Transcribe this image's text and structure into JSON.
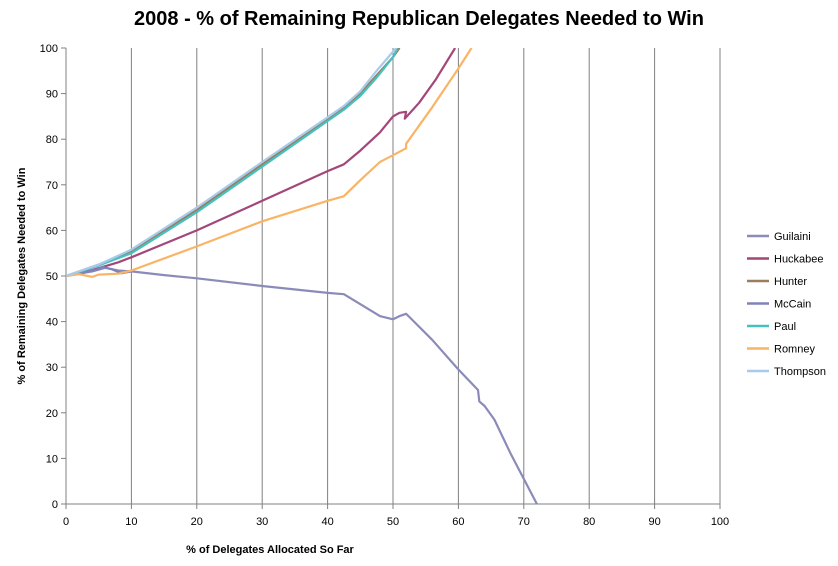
{
  "chart_data": {
    "type": "line",
    "title": "2008 - % of Remaining Republican Delegates Needed to Win",
    "xlabel": "% of Delegates Allocated So Far",
    "ylabel": "% of Remaining Delegates Needed to Win",
    "xlim": [
      0,
      100
    ],
    "ylim": [
      0,
      100
    ],
    "xticks": [
      0,
      10,
      20,
      30,
      40,
      50,
      60,
      70,
      80,
      90,
      100
    ],
    "yticks": [
      0,
      10,
      20,
      30,
      40,
      50,
      60,
      70,
      80,
      90,
      100
    ],
    "grid": "vertical",
    "legend": "right",
    "series": [
      {
        "name": "Guilaini",
        "color": "#8B8BB9",
        "points": [
          [
            0,
            50
          ],
          [
            2,
            50.5
          ],
          [
            4,
            51
          ],
          [
            6,
            51.8
          ],
          [
            8,
            51.2
          ],
          [
            10,
            51
          ],
          [
            15,
            50.2
          ],
          [
            20,
            49.5
          ],
          [
            30,
            47.8
          ],
          [
            40,
            46.3
          ],
          [
            42.5,
            46
          ],
          [
            48,
            41.2
          ],
          [
            50,
            40.5
          ],
          [
            51,
            41.2
          ],
          [
            52,
            41.7
          ],
          [
            52.5,
            41
          ],
          [
            56,
            36
          ],
          [
            60,
            29.5
          ],
          [
            63,
            25
          ],
          [
            63.2,
            22.5
          ],
          [
            64,
            21.5
          ],
          [
            65.5,
            18.5
          ],
          [
            68,
            11
          ],
          [
            72,
            0
          ]
        ]
      },
      {
        "name": "Huckabee",
        "color": "#A3477A",
        "points": [
          [
            0,
            50
          ],
          [
            4,
            51.3
          ],
          [
            8,
            53
          ],
          [
            10,
            54.1
          ],
          [
            20,
            60
          ],
          [
            30,
            66.5
          ],
          [
            40,
            73
          ],
          [
            42.5,
            74.5
          ],
          [
            45,
            77.5
          ],
          [
            48,
            81.5
          ],
          [
            50,
            85
          ],
          [
            51,
            85.8
          ],
          [
            52,
            86
          ],
          [
            51.8,
            84.5
          ],
          [
            54,
            88
          ],
          [
            56.5,
            93
          ],
          [
            59.5,
            100
          ]
        ]
      },
      {
        "name": "Hunter",
        "color": "#9A7D5A",
        "points": [
          [
            0,
            50
          ],
          [
            5,
            52.5
          ],
          [
            10,
            55.5
          ],
          [
            20,
            64.5
          ],
          [
            30,
            74.5
          ],
          [
            40,
            84.5
          ],
          [
            42.5,
            87
          ],
          [
            45,
            90
          ],
          [
            47.5,
            94
          ],
          [
            50,
            98
          ],
          [
            51,
            100
          ]
        ]
      },
      {
        "name": "McCain",
        "color": "#7E84B8",
        "points": [
          [
            0,
            50
          ],
          [
            2,
            50.6
          ],
          [
            5,
            51.5
          ],
          [
            5.5,
            52
          ],
          [
            7,
            51.5
          ],
          [
            8.5,
            50.6
          ],
          [
            10,
            51
          ]
        ]
      },
      {
        "name": "Paul",
        "color": "#46C1C0",
        "points": [
          [
            0,
            50
          ],
          [
            5,
            52.3
          ],
          [
            10,
            55
          ],
          [
            20,
            64
          ],
          [
            30,
            74
          ],
          [
            40,
            84
          ],
          [
            42.5,
            86.5
          ],
          [
            45,
            89.5
          ],
          [
            47.5,
            93.5
          ],
          [
            50,
            98
          ],
          [
            50.7,
            100
          ]
        ]
      },
      {
        "name": "Romney",
        "color": "#F9B465",
        "points": [
          [
            0,
            50
          ],
          [
            2,
            50.4
          ],
          [
            4,
            49.8
          ],
          [
            5,
            50.3
          ],
          [
            8,
            50.5
          ],
          [
            10,
            51.2
          ],
          [
            20,
            56.5
          ],
          [
            30,
            62
          ],
          [
            40,
            66.5
          ],
          [
            42.5,
            67.5
          ],
          [
            45,
            71
          ],
          [
            48,
            75
          ],
          [
            50,
            76.5
          ],
          [
            52,
            78
          ],
          [
            52,
            79
          ],
          [
            56,
            87
          ],
          [
            60,
            95.5
          ],
          [
            62,
            100
          ]
        ]
      },
      {
        "name": "Thompson",
        "color": "#A8CBEB",
        "points": [
          [
            0,
            50
          ],
          [
            5,
            52.5
          ],
          [
            10,
            55.8
          ],
          [
            20,
            65
          ],
          [
            30,
            75
          ],
          [
            40,
            84.8
          ],
          [
            42.5,
            87.3
          ],
          [
            45,
            90.5
          ],
          [
            47.5,
            95
          ],
          [
            50,
            99.2
          ],
          [
            50.5,
            100
          ]
        ]
      }
    ]
  }
}
